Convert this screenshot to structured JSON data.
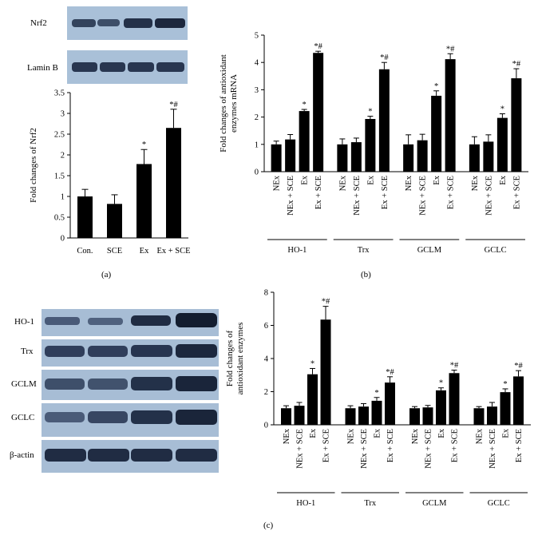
{
  "panel_labels": [
    "(a)",
    "(b)",
    "(c)"
  ],
  "blots": {
    "a": [
      "Nrf2",
      "Lamin B"
    ],
    "c_rows": [
      "HO-1",
      "Trx",
      "GCLM",
      "GCLC"
    ],
    "c_loading": "β-actin"
  },
  "chart_data": [
    {
      "panel": "a",
      "type": "bar",
      "categories": [
        "Con.",
        "SCE",
        "Ex",
        "Ex + SCE"
      ],
      "values": [
        1.0,
        0.82,
        1.78,
        2.65
      ],
      "errors": [
        0.17,
        0.22,
        0.35,
        0.45
      ],
      "annotations": [
        "",
        "",
        "*",
        "*#"
      ],
      "ylabel": "Fold changes of Nrf2",
      "ylim": [
        0,
        3.5
      ],
      "yticks": [
        "0",
        "0.5",
        "1",
        "1.5",
        "2",
        "2.5",
        "3",
        "3.5"
      ]
    },
    {
      "panel": "b",
      "type": "bar",
      "groups": [
        "HO-1",
        "Trx",
        "GCLM",
        "GCLC"
      ],
      "categories": [
        "NEx",
        "NEx + SCE",
        "Ex",
        "Ex + SCE"
      ],
      "values": [
        [
          1.0,
          1.18,
          2.22,
          4.35
        ],
        [
          1.0,
          1.08,
          1.93,
          3.75
        ],
        [
          1.0,
          1.15,
          2.78,
          4.12
        ],
        [
          1.0,
          1.1,
          1.97,
          3.42
        ]
      ],
      "errors": [
        [
          0.12,
          0.18,
          0.06,
          0.06
        ],
        [
          0.2,
          0.15,
          0.1,
          0.25
        ],
        [
          0.35,
          0.22,
          0.18,
          0.2
        ],
        [
          0.28,
          0.25,
          0.15,
          0.35
        ]
      ],
      "annotations": [
        [
          "",
          "",
          "*",
          "*#"
        ],
        [
          "",
          "",
          "*",
          "*#"
        ],
        [
          "",
          "",
          "*",
          "*#"
        ],
        [
          "",
          "",
          "*",
          "*#"
        ]
      ],
      "ylabel": [
        "Fold changes of antioxidant",
        "enzymes mRNA"
      ],
      "ylim": [
        0,
        5
      ],
      "yticks": [
        "0",
        "1",
        "2",
        "3",
        "4",
        "5"
      ]
    },
    {
      "panel": "c",
      "type": "bar",
      "groups": [
        "HO-1",
        "Trx",
        "GCLM",
        "GCLC"
      ],
      "categories": [
        "NEx",
        "NEx + SCE",
        "Ex",
        "Ex + SCE"
      ],
      "values": [
        [
          1.0,
          1.15,
          3.05,
          6.35
        ],
        [
          1.0,
          1.1,
          1.45,
          2.55
        ],
        [
          1.0,
          1.05,
          2.08,
          3.12
        ],
        [
          1.0,
          1.1,
          1.97,
          2.92
        ]
      ],
      "errors": [
        [
          0.15,
          0.2,
          0.35,
          0.8
        ],
        [
          0.15,
          0.18,
          0.2,
          0.35
        ],
        [
          0.1,
          0.12,
          0.15,
          0.18
        ],
        [
          0.1,
          0.25,
          0.2,
          0.35
        ]
      ],
      "annotations": [
        [
          "",
          "",
          "*",
          "*#"
        ],
        [
          "",
          "",
          "*",
          "*#"
        ],
        [
          "",
          "",
          "*",
          "*#"
        ],
        [
          "",
          "",
          "*",
          "*#"
        ]
      ],
      "ylabel": [
        "Fold changes of",
        "antioxidant enzymes"
      ],
      "ylim": [
        0,
        8
      ],
      "yticks": [
        "0",
        "2",
        "4",
        "6",
        "8"
      ]
    }
  ]
}
